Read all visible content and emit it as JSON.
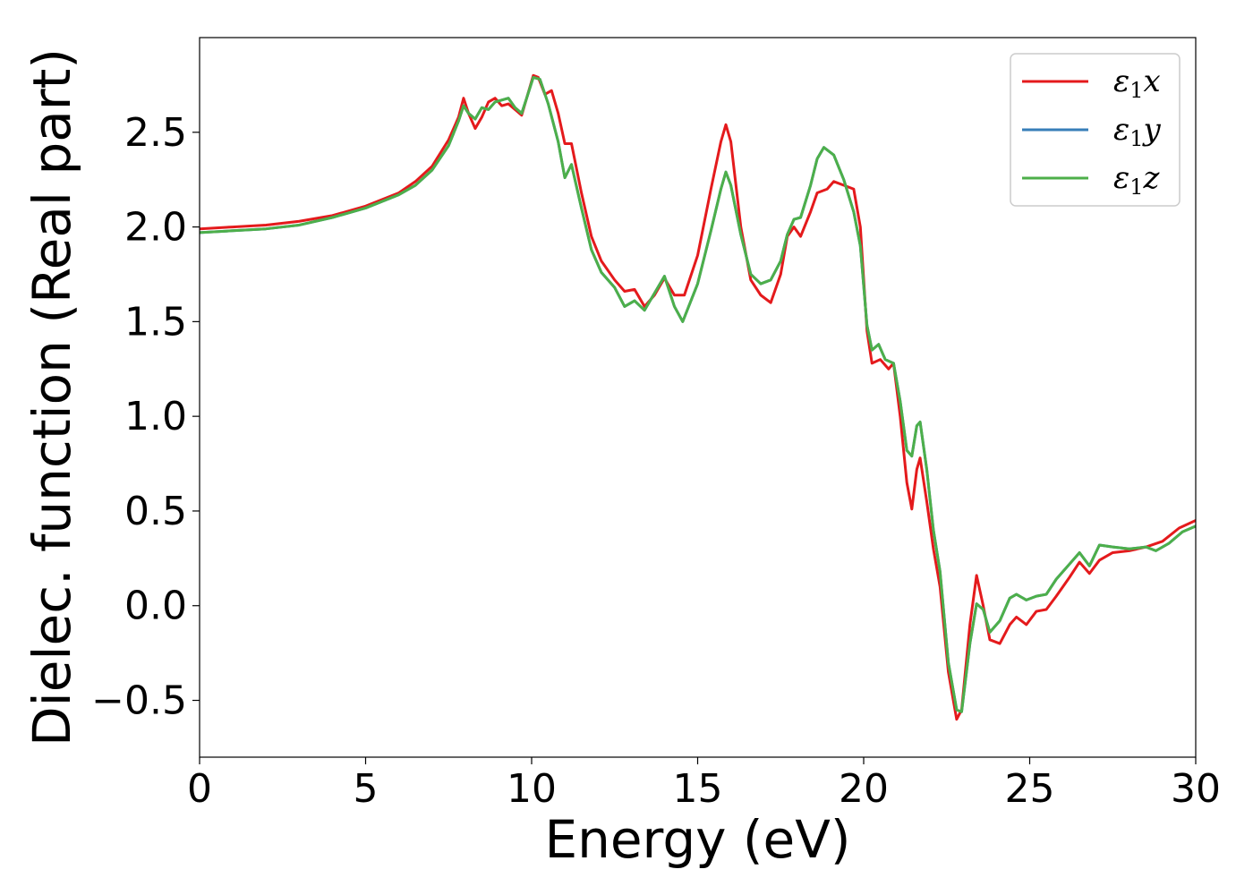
{
  "chart_data": {
    "type": "line",
    "title": "",
    "xlabel": "Energy (eV)",
    "ylabel": "Dielec. function (Real part)",
    "xlim": [
      0,
      30
    ],
    "ylim": [
      -0.8,
      3.0
    ],
    "xticks": [
      0,
      5,
      10,
      15,
      20,
      25,
      30
    ],
    "xtick_labels": [
      "0",
      "5",
      "10",
      "15",
      "20",
      "25",
      "30"
    ],
    "yticks": [
      -0.5,
      0.0,
      0.5,
      1.0,
      1.5,
      2.0,
      2.5
    ],
    "ytick_labels": [
      "−0.5",
      "0.0",
      "0.5",
      "1.0",
      "1.5",
      "2.0",
      "2.5"
    ],
    "grid": false,
    "legend_position": "top-right",
    "series": [
      {
        "name": "ε₁x",
        "legend_main": "ε",
        "legend_sub": "1",
        "legend_var": "x",
        "color": "#e41a1c",
        "points": [
          [
            0,
            1.99
          ],
          [
            1,
            2.0
          ],
          [
            2,
            2.01
          ],
          [
            3,
            2.03
          ],
          [
            4,
            2.06
          ],
          [
            5,
            2.11
          ],
          [
            6,
            2.18
          ],
          [
            6.5,
            2.24
          ],
          [
            7,
            2.32
          ],
          [
            7.5,
            2.46
          ],
          [
            7.8,
            2.58
          ],
          [
            7.95,
            2.68
          ],
          [
            8.1,
            2.6
          ],
          [
            8.3,
            2.52
          ],
          [
            8.5,
            2.58
          ],
          [
            8.7,
            2.66
          ],
          [
            8.9,
            2.68
          ],
          [
            9.1,
            2.64
          ],
          [
            9.3,
            2.65
          ],
          [
            9.5,
            2.62
          ],
          [
            9.7,
            2.59
          ],
          [
            9.85,
            2.68
          ],
          [
            10.05,
            2.8
          ],
          [
            10.2,
            2.79
          ],
          [
            10.4,
            2.7
          ],
          [
            10.6,
            2.72
          ],
          [
            10.8,
            2.6
          ],
          [
            11.0,
            2.44
          ],
          [
            11.2,
            2.44
          ],
          [
            11.5,
            2.18
          ],
          [
            11.8,
            1.95
          ],
          [
            12.1,
            1.82
          ],
          [
            12.5,
            1.72
          ],
          [
            12.8,
            1.66
          ],
          [
            13.1,
            1.67
          ],
          [
            13.4,
            1.58
          ],
          [
            13.7,
            1.64
          ],
          [
            14.0,
            1.73
          ],
          [
            14.3,
            1.64
          ],
          [
            14.6,
            1.64
          ],
          [
            15.0,
            1.85
          ],
          [
            15.4,
            2.2
          ],
          [
            15.7,
            2.45
          ],
          [
            15.85,
            2.54
          ],
          [
            16.0,
            2.45
          ],
          [
            16.3,
            2.0
          ],
          [
            16.6,
            1.72
          ],
          [
            16.9,
            1.64
          ],
          [
            17.2,
            1.6
          ],
          [
            17.5,
            1.75
          ],
          [
            17.7,
            1.95
          ],
          [
            17.9,
            2.0
          ],
          [
            18.1,
            1.95
          ],
          [
            18.4,
            2.08
          ],
          [
            18.6,
            2.18
          ],
          [
            18.9,
            2.2
          ],
          [
            19.1,
            2.24
          ],
          [
            19.4,
            2.22
          ],
          [
            19.7,
            2.2
          ],
          [
            19.9,
            2.0
          ],
          [
            20.1,
            1.45
          ],
          [
            20.25,
            1.28
          ],
          [
            20.5,
            1.3
          ],
          [
            20.75,
            1.25
          ],
          [
            20.9,
            1.28
          ],
          [
            21.1,
            1.0
          ],
          [
            21.3,
            0.65
          ],
          [
            21.45,
            0.51
          ],
          [
            21.6,
            0.72
          ],
          [
            21.7,
            0.78
          ],
          [
            21.9,
            0.55
          ],
          [
            22.1,
            0.3
          ],
          [
            22.3,
            0.1
          ],
          [
            22.55,
            -0.35
          ],
          [
            22.8,
            -0.6
          ],
          [
            22.95,
            -0.55
          ],
          [
            23.2,
            -0.1
          ],
          [
            23.4,
            0.16
          ],
          [
            23.6,
            0.0
          ],
          [
            23.8,
            -0.18
          ],
          [
            24.1,
            -0.2
          ],
          [
            24.4,
            -0.1
          ],
          [
            24.6,
            -0.06
          ],
          [
            24.9,
            -0.1
          ],
          [
            25.2,
            -0.03
          ],
          [
            25.5,
            -0.02
          ],
          [
            25.8,
            0.05
          ],
          [
            26.2,
            0.15
          ],
          [
            26.5,
            0.23
          ],
          [
            26.8,
            0.17
          ],
          [
            27.1,
            0.24
          ],
          [
            27.5,
            0.28
          ],
          [
            28.0,
            0.29
          ],
          [
            28.5,
            0.31
          ],
          [
            29.0,
            0.34
          ],
          [
            29.5,
            0.41
          ],
          [
            30,
            0.45
          ]
        ]
      },
      {
        "name": "ε₁y",
        "legend_main": "ε",
        "legend_sub": "1",
        "legend_var": "y",
        "color": "#377eb8",
        "points": [
          [
            0,
            1.97
          ],
          [
            1,
            1.98
          ],
          [
            2,
            1.99
          ],
          [
            3,
            2.01
          ],
          [
            4,
            2.05
          ],
          [
            5,
            2.1
          ],
          [
            6,
            2.17
          ],
          [
            6.5,
            2.22
          ],
          [
            7,
            2.3
          ],
          [
            7.5,
            2.43
          ],
          [
            7.8,
            2.56
          ],
          [
            7.95,
            2.64
          ],
          [
            8.1,
            2.6
          ],
          [
            8.3,
            2.57
          ],
          [
            8.5,
            2.63
          ],
          [
            8.7,
            2.62
          ],
          [
            8.9,
            2.66
          ],
          [
            9.1,
            2.67
          ],
          [
            9.3,
            2.68
          ],
          [
            9.5,
            2.63
          ],
          [
            9.7,
            2.6
          ],
          [
            9.85,
            2.68
          ],
          [
            10.05,
            2.79
          ],
          [
            10.25,
            2.78
          ],
          [
            10.5,
            2.65
          ],
          [
            10.8,
            2.45
          ],
          [
            11.0,
            2.26
          ],
          [
            11.2,
            2.33
          ],
          [
            11.5,
            2.1
          ],
          [
            11.8,
            1.88
          ],
          [
            12.1,
            1.76
          ],
          [
            12.5,
            1.68
          ],
          [
            12.8,
            1.58
          ],
          [
            13.1,
            1.61
          ],
          [
            13.4,
            1.56
          ],
          [
            13.7,
            1.65
          ],
          [
            14.0,
            1.74
          ],
          [
            14.3,
            1.58
          ],
          [
            14.55,
            1.5
          ],
          [
            15.0,
            1.7
          ],
          [
            15.4,
            1.98
          ],
          [
            15.7,
            2.2
          ],
          [
            15.85,
            2.29
          ],
          [
            16.0,
            2.22
          ],
          [
            16.3,
            1.96
          ],
          [
            16.6,
            1.75
          ],
          [
            16.9,
            1.7
          ],
          [
            17.2,
            1.72
          ],
          [
            17.5,
            1.82
          ],
          [
            17.7,
            1.96
          ],
          [
            17.9,
            2.04
          ],
          [
            18.1,
            2.05
          ],
          [
            18.4,
            2.22
          ],
          [
            18.6,
            2.36
          ],
          [
            18.8,
            2.42
          ],
          [
            19.1,
            2.38
          ],
          [
            19.4,
            2.25
          ],
          [
            19.7,
            2.08
          ],
          [
            19.9,
            1.9
          ],
          [
            20.1,
            1.48
          ],
          [
            20.25,
            1.35
          ],
          [
            20.45,
            1.38
          ],
          [
            20.65,
            1.3
          ],
          [
            20.9,
            1.28
          ],
          [
            21.1,
            1.08
          ],
          [
            21.3,
            0.82
          ],
          [
            21.45,
            0.79
          ],
          [
            21.6,
            0.95
          ],
          [
            21.7,
            0.97
          ],
          [
            21.9,
            0.72
          ],
          [
            22.1,
            0.4
          ],
          [
            22.3,
            0.18
          ],
          [
            22.55,
            -0.3
          ],
          [
            22.8,
            -0.55
          ],
          [
            22.95,
            -0.56
          ],
          [
            23.2,
            -0.2
          ],
          [
            23.4,
            0.01
          ],
          [
            23.6,
            -0.02
          ],
          [
            23.8,
            -0.14
          ],
          [
            24.1,
            -0.08
          ],
          [
            24.4,
            0.04
          ],
          [
            24.6,
            0.06
          ],
          [
            24.9,
            0.03
          ],
          [
            25.2,
            0.05
          ],
          [
            25.5,
            0.06
          ],
          [
            25.8,
            0.14
          ],
          [
            26.2,
            0.22
          ],
          [
            26.5,
            0.28
          ],
          [
            26.8,
            0.21
          ],
          [
            27.1,
            0.32
          ],
          [
            27.5,
            0.31
          ],
          [
            28.0,
            0.3
          ],
          [
            28.5,
            0.31
          ],
          [
            28.8,
            0.29
          ],
          [
            29.2,
            0.33
          ],
          [
            29.6,
            0.39
          ],
          [
            30,
            0.42
          ]
        ]
      },
      {
        "name": "ε₁z",
        "legend_main": "ε",
        "legend_sub": "1",
        "legend_var": "z",
        "color": "#4daf4a",
        "points": [
          [
            0,
            1.97
          ],
          [
            1,
            1.98
          ],
          [
            2,
            1.99
          ],
          [
            3,
            2.01
          ],
          [
            4,
            2.05
          ],
          [
            5,
            2.1
          ],
          [
            6,
            2.17
          ],
          [
            6.5,
            2.22
          ],
          [
            7,
            2.3
          ],
          [
            7.5,
            2.43
          ],
          [
            7.8,
            2.56
          ],
          [
            7.95,
            2.64
          ],
          [
            8.1,
            2.6
          ],
          [
            8.3,
            2.57
          ],
          [
            8.5,
            2.63
          ],
          [
            8.7,
            2.62
          ],
          [
            8.9,
            2.66
          ],
          [
            9.1,
            2.67
          ],
          [
            9.3,
            2.68
          ],
          [
            9.5,
            2.63
          ],
          [
            9.7,
            2.6
          ],
          [
            9.85,
            2.68
          ],
          [
            10.05,
            2.79
          ],
          [
            10.25,
            2.78
          ],
          [
            10.5,
            2.65
          ],
          [
            10.8,
            2.45
          ],
          [
            11.0,
            2.26
          ],
          [
            11.2,
            2.33
          ],
          [
            11.5,
            2.1
          ],
          [
            11.8,
            1.88
          ],
          [
            12.1,
            1.76
          ],
          [
            12.5,
            1.68
          ],
          [
            12.8,
            1.58
          ],
          [
            13.1,
            1.61
          ],
          [
            13.4,
            1.56
          ],
          [
            13.7,
            1.65
          ],
          [
            14.0,
            1.74
          ],
          [
            14.3,
            1.58
          ],
          [
            14.55,
            1.5
          ],
          [
            15.0,
            1.7
          ],
          [
            15.4,
            1.98
          ],
          [
            15.7,
            2.2
          ],
          [
            15.85,
            2.29
          ],
          [
            16.0,
            2.22
          ],
          [
            16.3,
            1.96
          ],
          [
            16.6,
            1.75
          ],
          [
            16.9,
            1.7
          ],
          [
            17.2,
            1.72
          ],
          [
            17.5,
            1.82
          ],
          [
            17.7,
            1.96
          ],
          [
            17.9,
            2.04
          ],
          [
            18.1,
            2.05
          ],
          [
            18.4,
            2.22
          ],
          [
            18.6,
            2.36
          ],
          [
            18.8,
            2.42
          ],
          [
            19.1,
            2.38
          ],
          [
            19.4,
            2.25
          ],
          [
            19.7,
            2.08
          ],
          [
            19.9,
            1.9
          ],
          [
            20.1,
            1.48
          ],
          [
            20.25,
            1.35
          ],
          [
            20.45,
            1.38
          ],
          [
            20.65,
            1.3
          ],
          [
            20.9,
            1.28
          ],
          [
            21.1,
            1.08
          ],
          [
            21.3,
            0.82
          ],
          [
            21.45,
            0.79
          ],
          [
            21.6,
            0.95
          ],
          [
            21.7,
            0.97
          ],
          [
            21.9,
            0.72
          ],
          [
            22.1,
            0.4
          ],
          [
            22.3,
            0.18
          ],
          [
            22.55,
            -0.3
          ],
          [
            22.8,
            -0.55
          ],
          [
            22.95,
            -0.56
          ],
          [
            23.2,
            -0.2
          ],
          [
            23.4,
            0.01
          ],
          [
            23.6,
            -0.02
          ],
          [
            23.8,
            -0.14
          ],
          [
            24.1,
            -0.08
          ],
          [
            24.4,
            0.04
          ],
          [
            24.6,
            0.06
          ],
          [
            24.9,
            0.03
          ],
          [
            25.2,
            0.05
          ],
          [
            25.5,
            0.06
          ],
          [
            25.8,
            0.14
          ],
          [
            26.2,
            0.22
          ],
          [
            26.5,
            0.28
          ],
          [
            26.8,
            0.21
          ],
          [
            27.1,
            0.32
          ],
          [
            27.5,
            0.31
          ],
          [
            28.0,
            0.3
          ],
          [
            28.5,
            0.31
          ],
          [
            28.8,
            0.29
          ],
          [
            29.2,
            0.33
          ],
          [
            29.6,
            0.39
          ],
          [
            30,
            0.42
          ]
        ]
      }
    ]
  }
}
